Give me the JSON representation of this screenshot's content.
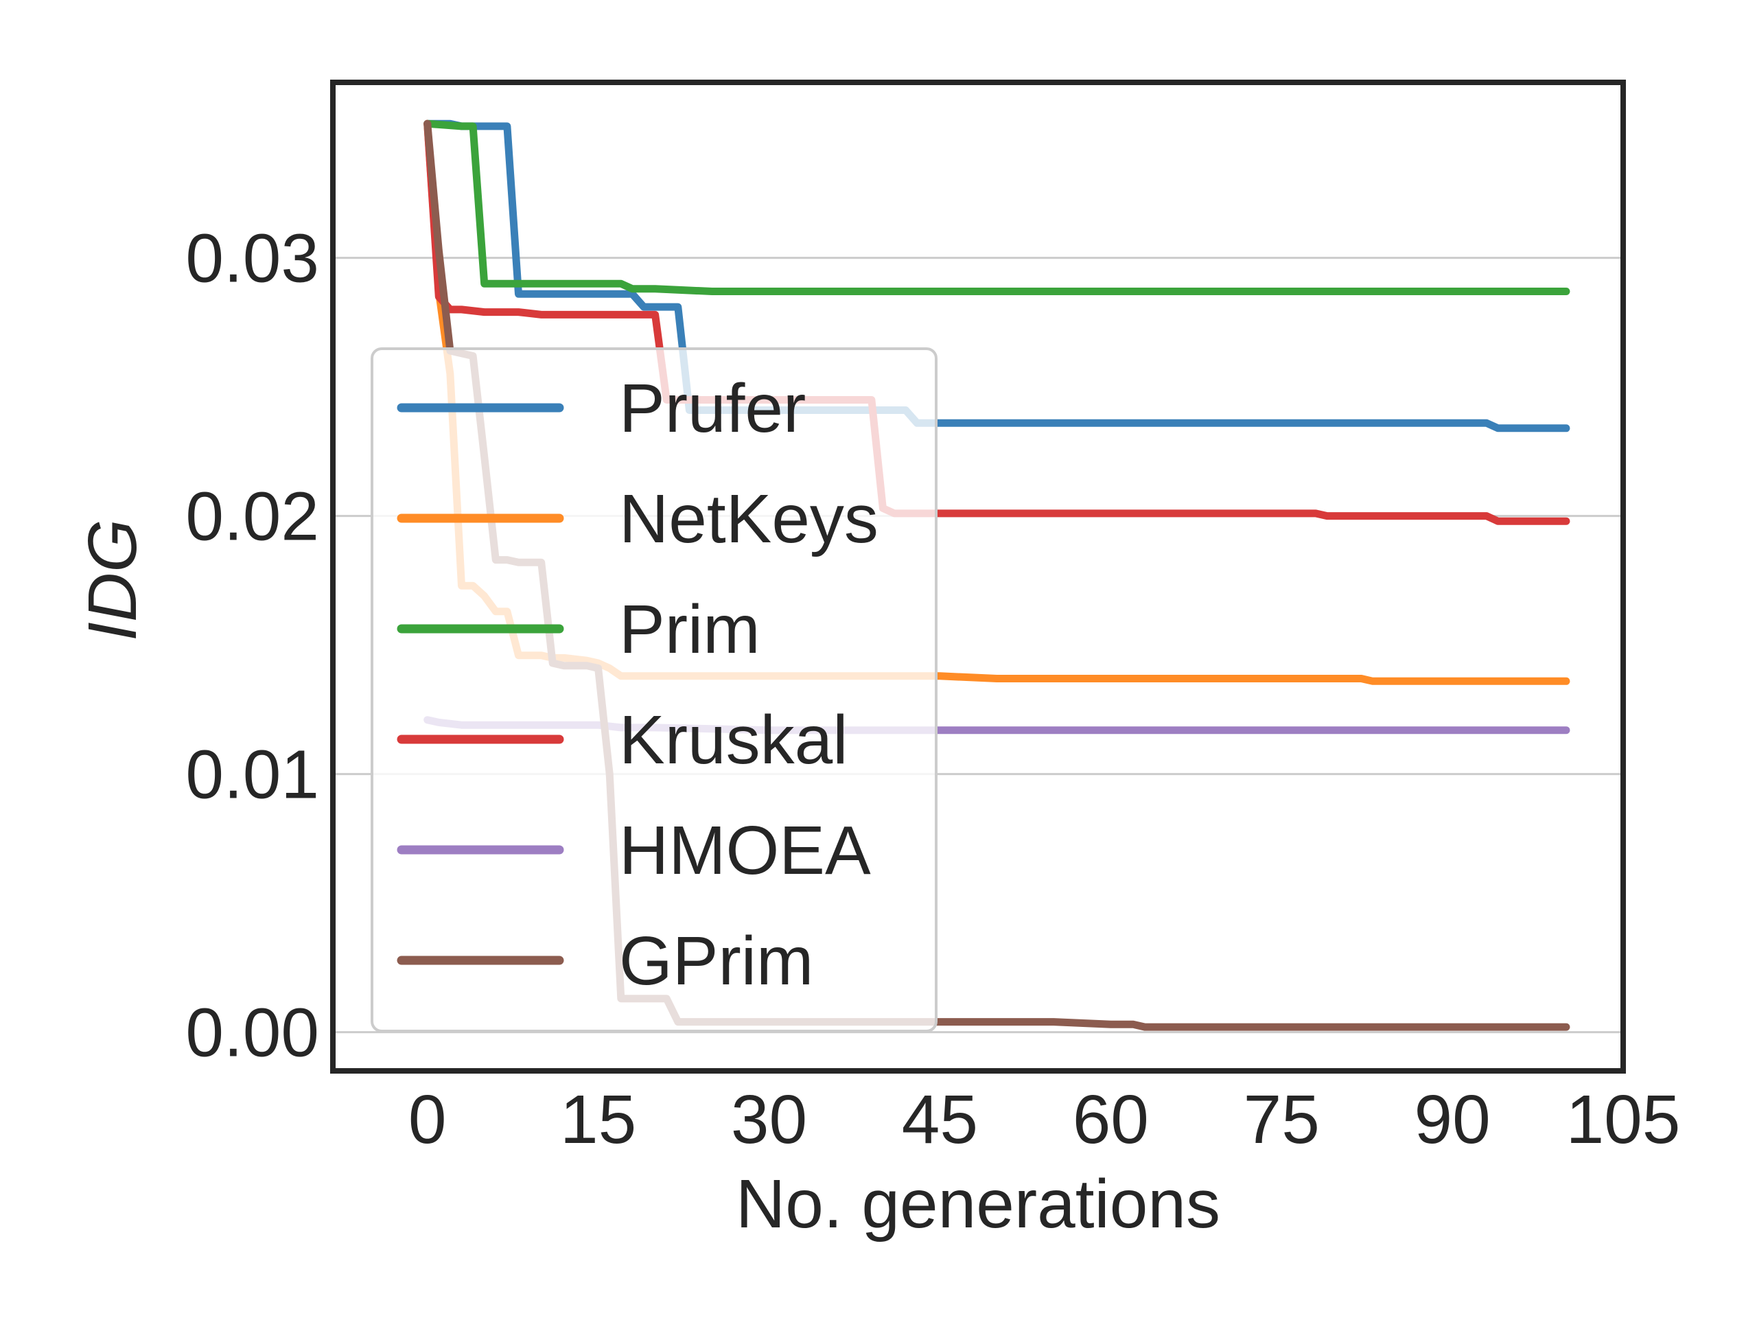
{
  "chart_data": {
    "type": "line",
    "title": "",
    "xlabel": "No. generations",
    "ylabel": "IDG",
    "xlim": [
      -8.3,
      105
    ],
    "ylim": [
      -0.0015,
      0.0368
    ],
    "xticks": [
      0,
      15,
      30,
      45,
      60,
      75,
      90,
      105
    ],
    "xtick_labels": [
      "0",
      "15",
      "30",
      "45",
      "60",
      "75",
      "90",
      "105"
    ],
    "yticks": [
      0.0,
      0.01,
      0.02,
      0.03
    ],
    "ytick_labels": [
      "0.00",
      "0.01",
      "0.02",
      "0.03"
    ],
    "grid": "horizontal",
    "legend_position": "center-left",
    "series": [
      {
        "name": "Prufer",
        "color": "#3a80b8",
        "x": [
          0,
          2,
          3,
          4,
          5,
          7,
          8,
          10,
          15,
          18,
          19,
          20,
          21,
          22,
          23,
          25,
          30,
          42,
          43,
          45,
          50,
          60,
          90,
          93,
          94,
          100
        ],
        "y": [
          0.0352,
          0.0352,
          0.0351,
          0.0351,
          0.0351,
          0.0351,
          0.0286,
          0.0286,
          0.0286,
          0.0286,
          0.0281,
          0.0281,
          0.0281,
          0.0281,
          0.0241,
          0.0241,
          0.0241,
          0.0241,
          0.0236,
          0.0236,
          0.0236,
          0.0236,
          0.0236,
          0.0236,
          0.0234,
          0.0234
        ]
      },
      {
        "name": "NetKeys",
        "color": "#ff8c26",
        "x": [
          0,
          1,
          2,
          3,
          4,
          5,
          6,
          7,
          8,
          10,
          11,
          12,
          14,
          15,
          16,
          17,
          18,
          20,
          25,
          30,
          40,
          45,
          50,
          60,
          70,
          80,
          82,
          83,
          100
        ],
        "y": [
          0.0352,
          0.0287,
          0.0255,
          0.0173,
          0.0173,
          0.0169,
          0.0163,
          0.0163,
          0.0146,
          0.0146,
          0.0145,
          0.0145,
          0.0144,
          0.0143,
          0.0141,
          0.0138,
          0.0138,
          0.0138,
          0.0138,
          0.0138,
          0.0138,
          0.0138,
          0.0137,
          0.0137,
          0.0137,
          0.0137,
          0.0137,
          0.0136,
          0.0136
        ]
      },
      {
        "name": "Prim",
        "color": "#3ba33b",
        "x": [
          0,
          3,
          4,
          5,
          8,
          10,
          15,
          17,
          18,
          20,
          25,
          30,
          50,
          100
        ],
        "y": [
          0.0352,
          0.0351,
          0.0351,
          0.029,
          0.029,
          0.029,
          0.029,
          0.029,
          0.0288,
          0.0288,
          0.0287,
          0.0287,
          0.0287,
          0.0287
        ]
      },
      {
        "name": "Kruskal",
        "color": "#d83a3a",
        "x": [
          0,
          1,
          2,
          3,
          5,
          8,
          10,
          15,
          19,
          20,
          21,
          25,
          30,
          35,
          39,
          40,
          41,
          45,
          50,
          60,
          70,
          78,
          79,
          80,
          93,
          94,
          100
        ],
        "y": [
          0.0352,
          0.0285,
          0.028,
          0.028,
          0.0279,
          0.0279,
          0.0278,
          0.0278,
          0.0278,
          0.0278,
          0.0245,
          0.0245,
          0.0245,
          0.0245,
          0.0245,
          0.0203,
          0.0201,
          0.0201,
          0.0201,
          0.0201,
          0.0201,
          0.0201,
          0.02,
          0.02,
          0.02,
          0.0198,
          0.0198
        ]
      },
      {
        "name": "HMOEA",
        "color": "#9d7ec2",
        "x": [
          0,
          1,
          3,
          5,
          10,
          15,
          17,
          20,
          30,
          45,
          60,
          100
        ],
        "y": [
          0.0121,
          0.012,
          0.0119,
          0.0119,
          0.0119,
          0.0119,
          0.0118,
          0.0118,
          0.0117,
          0.0117,
          0.0117,
          0.0117
        ]
      },
      {
        "name": "GPrim",
        "color": "#8c5c4f",
        "x": [
          0,
          1,
          2,
          3,
          4,
          5,
          6,
          7,
          8,
          10,
          11,
          12,
          14,
          15,
          16,
          17,
          18,
          20,
          21,
          22,
          23,
          25,
          30,
          45,
          55,
          60,
          62,
          63,
          100
        ],
        "y": [
          0.0352,
          0.0303,
          0.0264,
          0.0263,
          0.0262,
          0.0223,
          0.0183,
          0.0183,
          0.0182,
          0.0182,
          0.0143,
          0.0142,
          0.0142,
          0.0141,
          0.01,
          0.0013,
          0.0013,
          0.0013,
          0.0013,
          0.0004,
          0.0004,
          0.0004,
          0.0004,
          0.0004,
          0.0004,
          0.0003,
          0.0003,
          0.0002,
          0.0002
        ]
      }
    ]
  }
}
